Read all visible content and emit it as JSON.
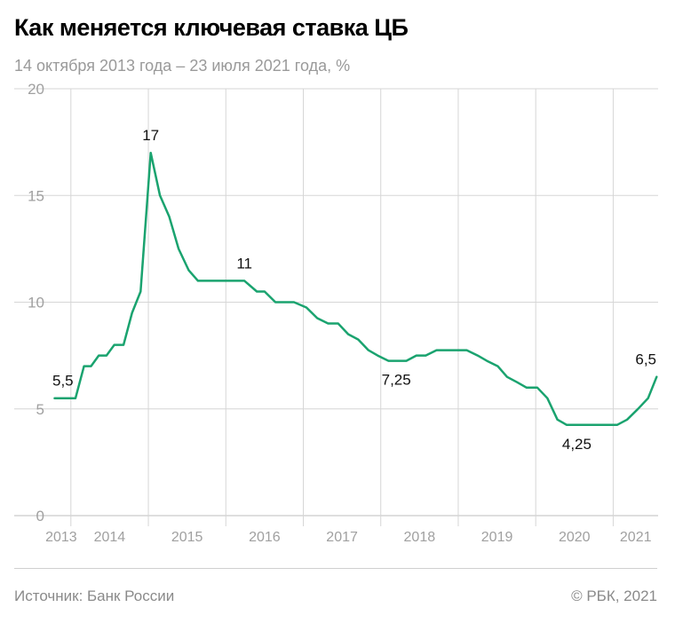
{
  "title": "Как меняется ключевая ставка ЦБ",
  "subtitle": "14 октября 2013 года – 23 июля 2021 года, %",
  "source": "Источник: Банк России",
  "copyright": "© РБК, 2021",
  "colors": {
    "line": "#1aa36f",
    "grid": "#d6d6d6",
    "axis_text": "#a0a0a0"
  },
  "chart_data": {
    "type": "line",
    "title": "Как меняется ключевая ставка ЦБ",
    "xlabel": "",
    "ylabel": "",
    "ylim": [
      0,
      20
    ],
    "xlim": [
      2013.75,
      2021.58
    ],
    "y_ticks": [
      0,
      5,
      10,
      15,
      20
    ],
    "x_tick_labels": [
      "2013",
      "2014",
      "2015",
      "2016",
      "2017",
      "2018",
      "2019",
      "2020",
      "2021"
    ],
    "grid": true,
    "series": [
      {
        "x": [
          2013.79,
          2013.96,
          2014.06,
          2014.17,
          2014.26,
          2014.36,
          2014.46,
          2014.56,
          2014.68,
          2014.79,
          2014.9,
          2015.03,
          2015.15,
          2015.27,
          2015.39,
          2015.52,
          2015.64,
          2015.76,
          2015.88,
          2016.0,
          2016.12,
          2016.24,
          2016.4,
          2016.5,
          2016.64,
          2016.76,
          2016.88,
          2017.04,
          2017.18,
          2017.32,
          2017.45,
          2017.58,
          2017.71,
          2017.84,
          2017.96,
          2018.1,
          2018.2,
          2018.33,
          2018.46,
          2018.58,
          2018.72,
          2018.85,
          2018.98,
          2019.11,
          2019.25,
          2019.37,
          2019.51,
          2019.63,
          2019.76,
          2019.88,
          2020.02,
          2020.15,
          2020.28,
          2020.4,
          2020.53,
          2020.66,
          2020.79,
          2020.92,
          2021.05,
          2021.18,
          2021.32,
          2021.45,
          2021.56
        ],
        "y": [
          5.5,
          5.5,
          5.5,
          7.0,
          7.0,
          7.5,
          7.5,
          8.0,
          8.0,
          9.5,
          10.5,
          17.0,
          15.0,
          14.0,
          12.5,
          11.5,
          11.0,
          11.0,
          11.0,
          11.0,
          11.0,
          11.0,
          10.5,
          10.5,
          10.0,
          10.0,
          10.0,
          9.75,
          9.25,
          9.0,
          9.0,
          8.5,
          8.25,
          7.75,
          7.5,
          7.25,
          7.25,
          7.25,
          7.5,
          7.5,
          7.75,
          7.75,
          7.75,
          7.75,
          7.5,
          7.25,
          7.0,
          6.5,
          6.25,
          6.0,
          6.0,
          5.5,
          4.5,
          4.25,
          4.25,
          4.25,
          4.25,
          4.25,
          4.25,
          4.5,
          5.0,
          5.5,
          6.5
        ]
      }
    ],
    "annotations": [
      {
        "text": "5,5",
        "x": 2013.79,
        "y": 5.5,
        "anchor": "above"
      },
      {
        "text": "17",
        "x": 2015.03,
        "y": 17.0,
        "anchor": "above"
      },
      {
        "text": "11",
        "x": 2016.24,
        "y": 11.0,
        "anchor": "above"
      },
      {
        "text": "7,25",
        "x": 2018.2,
        "y": 7.25,
        "anchor": "below"
      },
      {
        "text": "4,25",
        "x": 2020.53,
        "y": 4.25,
        "anchor": "below"
      },
      {
        "text": "6,5",
        "x": 2021.56,
        "y": 6.5,
        "anchor": "above"
      }
    ]
  }
}
